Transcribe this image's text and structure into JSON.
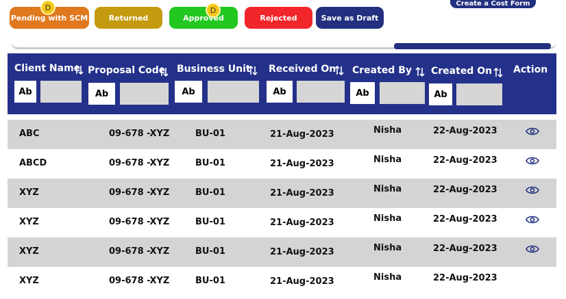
{
  "buttons": [
    "Pending with SCM",
    "Returned",
    "Approved",
    "Rejected",
    "Save as Draft"
  ],
  "top_button": "Create a Cost Form",
  "badges": [
    "D",
    "D"
  ],
  "table": {
    "columns": [
      {
        "label": "Client Name",
        "filter": "Ab"
      },
      {
        "label": "Proposal Code",
        "filter": "Ab"
      },
      {
        "label": "Business Unit",
        "filter": "Ab"
      },
      {
        "label": "Received On",
        "filter": "Ab"
      },
      {
        "label": "Created By",
        "filter": "Ab"
      },
      {
        "label": "Created On",
        "filter": "Ab"
      }
    ],
    "action_label": "Action",
    "rows": [
      [
        "ABC",
        "09-678 -XYZ",
        "BU-01",
        "21-Aug-2023",
        "Nisha",
        "22-Aug-2023"
      ],
      [
        "ABCD",
        "09-678 -XYZ",
        "BU-01",
        "21-Aug-2023",
        "Nisha",
        "22-Aug-2023"
      ],
      [
        "XYZ",
        "09-678 -XYZ",
        "BU-01",
        "21-Aug-2023",
        "Nisha",
        "22-Aug-2023"
      ],
      [
        "XYZ",
        "09-678 -XYZ",
        "BU-01",
        "21-Aug-2023",
        "Nisha",
        "22-Aug-2023"
      ],
      [
        "XYZ",
        "09-678 -XYZ",
        "BU-01",
        "21-Aug-2023",
        "Nisha",
        "22-Aug-2023"
      ],
      [
        "XYZ",
        "09-678 -XYZ",
        "BU-01",
        "21-Aug-2023",
        "Nisha",
        "22-Aug-2023"
      ]
    ]
  }
}
